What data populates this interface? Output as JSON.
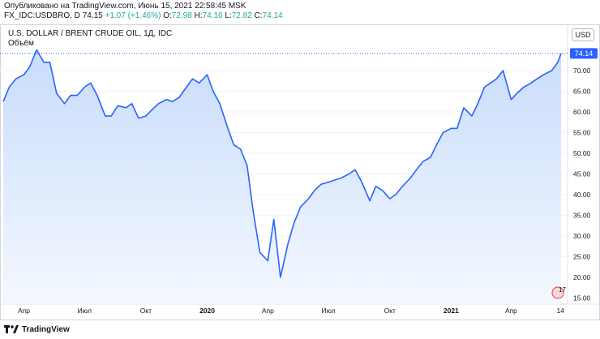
{
  "header": {
    "published": "Опубликовано на TradingView.com, Июнь 15, 2021 22:58:45 MSK",
    "symbol": "FX_IDC:USDBRO, D",
    "last": "74.15",
    "change": "+1.07 (+1.46%)",
    "open_label": "O:",
    "open": "72.98",
    "high_label": "H:",
    "high": "74.16",
    "low_label": "L:",
    "low": "72.82",
    "close_label": "C:",
    "close": "74.14"
  },
  "overlay": {
    "title": "U.S. DOLLAR / BRENT CRUDE OIL, 1Д, IDC",
    "volume": "Объём",
    "currency": "USD"
  },
  "footer": {
    "brand": "TradingView"
  },
  "colors": {
    "line": "#2962ff",
    "fill_top": "#c9dcfb",
    "fill_bottom": "#f4f8ff",
    "up": "#26a69a",
    "price_label_bg": "#2962ff"
  },
  "chart_data": {
    "type": "area",
    "title": "U.S. DOLLAR / BRENT CRUDE OIL, 1Д, IDC",
    "x": [
      "2019-03-01",
      "2019-03-10",
      "2019-03-20",
      "2019-04-01",
      "2019-04-10",
      "2019-04-20",
      "2019-05-01",
      "2019-05-10",
      "2019-05-20",
      "2019-06-01",
      "2019-06-10",
      "2019-06-20",
      "2019-07-01",
      "2019-07-10",
      "2019-07-20",
      "2019-08-01",
      "2019-08-10",
      "2019-08-20",
      "2019-09-01",
      "2019-09-10",
      "2019-09-20",
      "2019-10-01",
      "2019-10-10",
      "2019-10-20",
      "2019-11-01",
      "2019-11-10",
      "2019-11-20",
      "2019-12-01",
      "2019-12-10",
      "2019-12-20",
      "2020-01-01",
      "2020-01-10",
      "2020-01-20",
      "2020-02-01",
      "2020-02-10",
      "2020-02-20",
      "2020-03-01",
      "2020-03-10",
      "2020-03-20",
      "2020-04-01",
      "2020-04-10",
      "2020-04-20",
      "2020-05-01",
      "2020-05-10",
      "2020-05-20",
      "2020-06-01",
      "2020-06-10",
      "2020-06-20",
      "2020-07-01",
      "2020-07-10",
      "2020-07-20",
      "2020-08-01",
      "2020-08-10",
      "2020-08-20",
      "2020-09-01",
      "2020-09-10",
      "2020-09-20",
      "2020-10-01",
      "2020-10-10",
      "2020-10-20",
      "2020-11-01",
      "2020-11-10",
      "2020-11-20",
      "2020-12-01",
      "2020-12-10",
      "2020-12-20",
      "2021-01-01",
      "2021-01-10",
      "2021-01-20",
      "2021-02-01",
      "2021-02-10",
      "2021-02-20",
      "2021-03-01",
      "2021-03-10",
      "2021-03-20",
      "2021-04-01",
      "2021-04-10",
      "2021-04-20",
      "2021-05-01",
      "2021-05-10",
      "2021-05-20",
      "2021-06-01",
      "2021-06-10",
      "2021-06-15"
    ],
    "values": [
      62.5,
      66,
      68,
      69,
      71,
      75,
      72,
      72,
      64.5,
      62,
      64,
      64,
      66,
      67,
      64,
      59,
      59,
      61.5,
      61,
      62,
      58.5,
      59,
      60.5,
      62,
      63,
      62.5,
      63.5,
      66,
      68,
      67,
      69,
      65,
      62,
      56,
      52,
      51,
      47,
      36,
      26,
      24,
      34,
      20,
      28,
      33,
      37,
      39,
      41,
      42.5,
      43,
      43.5,
      44,
      45,
      46,
      43,
      38.5,
      42,
      41,
      39,
      40,
      42,
      44,
      46,
      48,
      49,
      52,
      55,
      56,
      56,
      61,
      59,
      62,
      66,
      67,
      68,
      70,
      63,
      64.5,
      66,
      67,
      68,
      69,
      70,
      72,
      74.14
    ],
    "xtick_labels": [
      "Апр",
      "Июл",
      "Окт",
      "2020",
      "Апр",
      "Июл",
      "Окт",
      "2021",
      "Апр",
      "14"
    ],
    "xtick_dates": [
      "2019-04-01",
      "2019-07-01",
      "2019-10-01",
      "2020-01-01",
      "2020-04-01",
      "2020-07-01",
      "2020-10-01",
      "2021-01-01",
      "2021-04-01",
      "2021-06-14"
    ],
    "y_ticks": [
      15,
      20,
      25,
      30,
      35,
      40,
      45,
      50,
      55,
      60,
      65,
      70
    ],
    "y_tick_labels": [
      "15.00",
      "20.00",
      "25.00",
      "30.00",
      "35.00",
      "40.00",
      "45.00",
      "50.00",
      "55.00",
      "60.00",
      "65.00",
      "70.00"
    ],
    "ylim": [
      13.5,
      80.0
    ],
    "current_value": "74.14",
    "marker_label": "17",
    "grid": "horizontal",
    "axis_position": "right"
  }
}
